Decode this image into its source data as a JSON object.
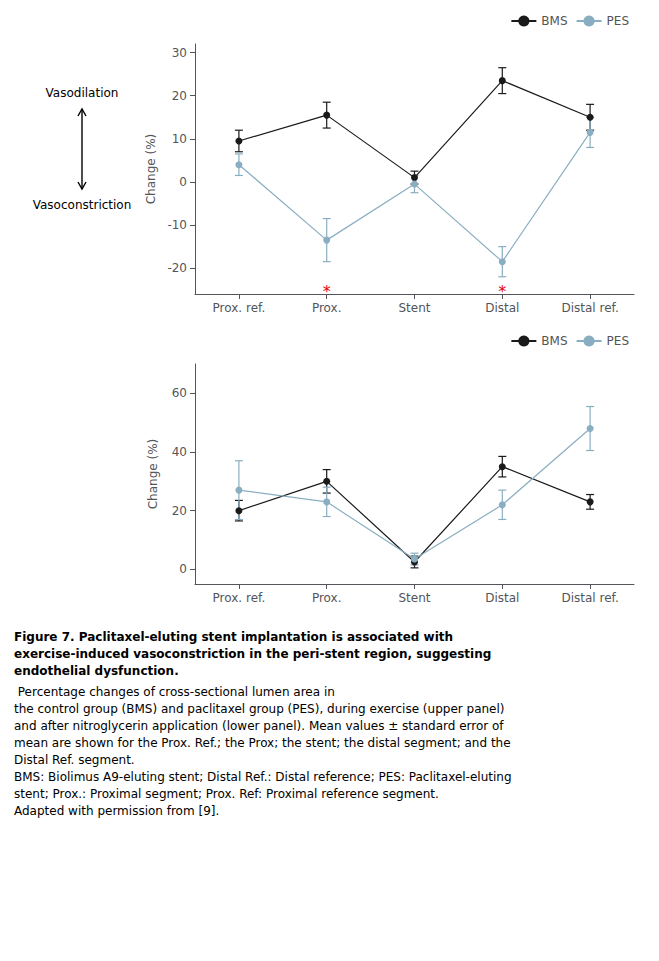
{
  "chart_data": [
    {
      "type": "line",
      "categories": [
        "Prox. ref.",
        "Prox.",
        "Stent",
        "Distal",
        "Distal ref."
      ],
      "ylabel": "Change (%)",
      "ylim": [
        -26,
        32
      ],
      "yticks": [
        -20,
        -10,
        0,
        10,
        20,
        30
      ],
      "grid": false,
      "legend": "upper right",
      "series": [
        {
          "name": "BMS",
          "color": "#1a1a1a",
          "marker": "circle",
          "line_style": "solid",
          "values": [
            9.5,
            15.5,
            1.0,
            23.5,
            15.0
          ],
          "errors": [
            2.5,
            3.0,
            1.5,
            3.0,
            3.0
          ]
        },
        {
          "name": "PES",
          "color": "#8aaec1",
          "marker": "circle",
          "line_style": "solid",
          "values": [
            4.0,
            -13.5,
            -0.5,
            -18.5,
            11.5
          ],
          "errors": [
            2.5,
            5.0,
            2.0,
            3.5,
            3.5
          ]
        }
      ],
      "annotations": [
        {
          "text": "*",
          "x": "Prox.",
          "y": -23.5,
          "color": "#e8000a"
        },
        {
          "text": "*",
          "x": "Distal",
          "y": -23.5,
          "color": "#e8000a"
        }
      ],
      "axis_notes": {
        "up": "Vasodilation",
        "down": "Vasoconstriction"
      }
    },
    {
      "type": "line",
      "categories": [
        "Prox. ref.",
        "Prox.",
        "Stent",
        "Distal",
        "Distal ref."
      ],
      "ylabel": "Change (%)",
      "ylim": [
        -5,
        70
      ],
      "yticks": [
        0,
        20,
        40,
        60
      ],
      "grid": false,
      "legend": "upper right",
      "series": [
        {
          "name": "BMS",
          "color": "#1a1a1a",
          "marker": "circle",
          "line_style": "solid",
          "values": [
            20.0,
            30.0,
            2.5,
            35.0,
            23.0
          ],
          "errors": [
            3.5,
            4.0,
            2.0,
            3.5,
            2.5
          ]
        },
        {
          "name": "PES",
          "color": "#8aaec1",
          "marker": "circle",
          "line_style": "solid",
          "values": [
            27.0,
            23.0,
            3.5,
            22.0,
            48.0
          ],
          "errors": [
            10.0,
            5.0,
            2.0,
            5.0,
            7.5
          ]
        }
      ]
    }
  ],
  "caption": {
    "bold": "Figure 7. Paclitaxel-eluting stent implantation is associated with\nexercise-induced vasoconstriction in the peri-stent region, suggesting\nendothelial dysfunction.",
    "normal": " Percentage changes of cross-sectional lumen area in\nthe control group (BMS) and paclitaxel group (PES), during exercise (upper panel)\nand after nitroglycerin application (lower panel). Mean values ± standard error of\nmean are shown for the Prox. Ref.; the Prox; the stent; the distal segment; and the\nDistal Ref. segment.\nBMS: Biolimus A9-eluting stent; Distal Ref.: Distal reference; PES: Paclitaxel-eluting\nstent; Prox.: Proximal segment; Prox. Ref: Proximal reference segment.\nAdapted with permission from [9]."
  }
}
